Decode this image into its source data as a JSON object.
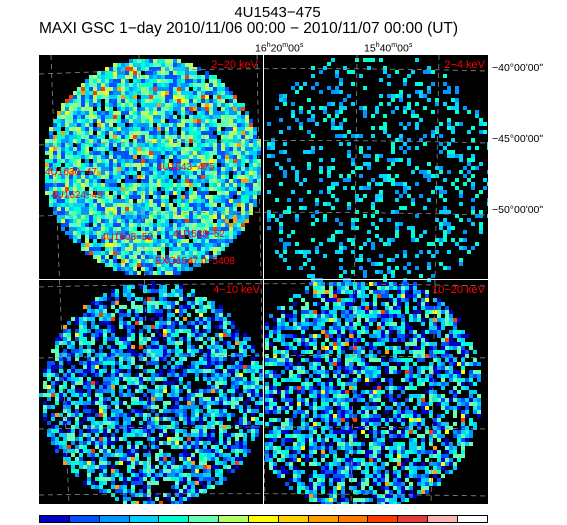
{
  "header": {
    "source": "4U1543−475",
    "subtitle": "MAXI GSC 1−day 2010/11/06 00:00 − 2010/11/07 00:00 (UT)"
  },
  "ra_labels": [
    {
      "h": "16",
      "m": "20",
      "s": "00",
      "suffix": "s"
    },
    {
      "h": "15",
      "m": "40",
      "s": "00",
      "suffix": "s"
    }
  ],
  "dec_labels": [
    "−40°00ʹ00ʺ",
    "−45°00ʹ00ʺ",
    "−50°00ʹ00ʺ"
  ],
  "panels": [
    {
      "band": "2−20 keV",
      "intensity": "high"
    },
    {
      "band": "2−4 keV",
      "intensity": "sparse"
    },
    {
      "band": "4−10 keV",
      "intensity": "medium"
    },
    {
      "band": "10−20 keV",
      "intensity": "medium"
    }
  ],
  "sources": [
    "4U1630−47",
    "4U1624−49",
    "4U1543−475",
    "4U1608−52",
    "4U1538−52",
    "EXO1547.0−5408"
  ],
  "colorbar": [
    "#0000c8",
    "#0050ff",
    "#0096ff",
    "#00d2ff",
    "#00ffd2",
    "#64ffb4",
    "#b4ff64",
    "#ffff00",
    "#ffd200",
    "#ffa000",
    "#ff7800",
    "#ff3c00",
    "#e63c3c",
    "#ffb4b4",
    "#ffffff"
  ],
  "colors": {
    "background": "#000000",
    "grid": "#8c8c8c",
    "label": "#ff0000"
  }
}
